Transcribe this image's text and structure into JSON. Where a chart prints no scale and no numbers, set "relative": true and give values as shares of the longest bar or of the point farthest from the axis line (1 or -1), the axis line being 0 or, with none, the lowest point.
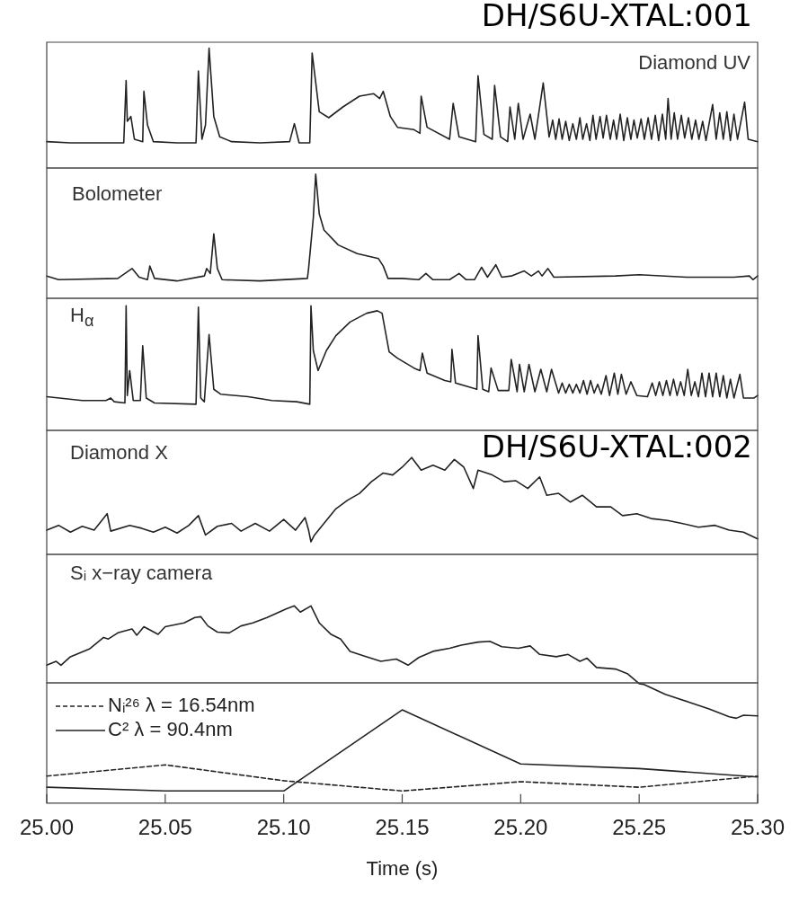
{
  "chart_data": [
    {
      "type": "line",
      "title": "Diamond UV",
      "relative": true,
      "xlim": [
        25.0,
        25.3
      ],
      "tick_labels": false,
      "grid": false,
      "color": "#222222",
      "annotations": [
        "DH/S6U-XTAL:001"
      ],
      "x": [
        25.0,
        25.01,
        25.02,
        25.03,
        25.0325,
        25.0335,
        25.034,
        25.0355,
        25.037,
        25.0405,
        25.041,
        25.0425,
        25.045,
        25.055,
        25.063,
        25.064,
        25.0655,
        25.067,
        25.0685,
        25.0705,
        25.073,
        25.078,
        25.09,
        25.1025,
        25.1045,
        25.1065,
        25.111,
        25.112,
        25.115,
        25.119,
        25.125,
        25.132,
        25.138,
        25.1405,
        25.142,
        25.145,
        25.148,
        25.155,
        25.1575,
        25.158,
        25.1605,
        25.17,
        25.1715,
        25.174,
        25.181,
        25.182,
        25.1845,
        25.188,
        25.189,
        25.1915,
        25.1945,
        25.1955,
        25.1975,
        25.199,
        25.201,
        25.204,
        25.206,
        25.2095,
        25.212,
        25.2135,
        25.2148,
        25.2162,
        25.2175,
        25.219,
        25.2205,
        25.222,
        25.2235,
        25.225,
        25.2262,
        25.2278,
        25.2292,
        25.2305,
        25.2318,
        25.2335,
        25.2348,
        25.2362,
        25.2378,
        25.2392,
        25.2405,
        25.242,
        25.2435,
        25.245,
        25.2465,
        25.2478,
        25.2492,
        25.2508,
        25.2522,
        25.2538,
        25.2552,
        25.2568,
        25.2582,
        25.2598,
        25.2612,
        25.2622,
        25.2635,
        25.2648,
        25.2662,
        25.2678,
        25.2692,
        25.2708,
        25.2722,
        25.2738,
        25.2752,
        25.2768,
        25.2782,
        25.281,
        25.2825,
        25.284,
        25.2855,
        25.287,
        25.2885,
        25.29,
        25.2915,
        25.2945,
        25.296,
        25.3
      ],
      "values": [
        0.22,
        0.21,
        0.21,
        0.21,
        0.21,
        0.73,
        0.39,
        0.43,
        0.24,
        0.22,
        0.64,
        0.36,
        0.22,
        0.21,
        0.21,
        0.81,
        0.24,
        0.36,
        1.0,
        0.43,
        0.26,
        0.22,
        0.21,
        0.22,
        0.37,
        0.21,
        0.21,
        0.96,
        0.47,
        0.42,
        0.51,
        0.6,
        0.62,
        0.58,
        0.64,
        0.43,
        0.34,
        0.32,
        0.29,
        0.6,
        0.34,
        0.24,
        0.54,
        0.26,
        0.22,
        0.77,
        0.28,
        0.24,
        0.69,
        0.26,
        0.22,
        0.51,
        0.24,
        0.54,
        0.24,
        0.45,
        0.24,
        0.71,
        0.26,
        0.4,
        0.24,
        0.41,
        0.24,
        0.39,
        0.23,
        0.37,
        0.24,
        0.42,
        0.24,
        0.37,
        0.23,
        0.44,
        0.24,
        0.43,
        0.25,
        0.44,
        0.24,
        0.4,
        0.24,
        0.45,
        0.23,
        0.42,
        0.24,
        0.4,
        0.25,
        0.41,
        0.24,
        0.42,
        0.24,
        0.44,
        0.23,
        0.45,
        0.24,
        0.58,
        0.24,
        0.46,
        0.24,
        0.44,
        0.25,
        0.42,
        0.24,
        0.4,
        0.24,
        0.39,
        0.23,
        0.53,
        0.24,
        0.46,
        0.24,
        0.47,
        0.23,
        0.45,
        0.24,
        0.55,
        0.24,
        0.22
      ]
    },
    {
      "type": "line",
      "title": "Bolometer",
      "relative": true,
      "xlim": [
        25.0,
        25.3
      ],
      "tick_labels": false,
      "grid": false,
      "color": "#222222",
      "x": [
        25.0,
        25.005,
        25.03,
        25.036,
        25.039,
        25.0425,
        25.0435,
        25.0455,
        25.055,
        25.0665,
        25.0675,
        25.069,
        25.0705,
        25.072,
        25.074,
        25.09,
        25.11,
        25.1105,
        25.1125,
        25.1135,
        25.115,
        25.117,
        25.123,
        25.131,
        25.14,
        25.142,
        25.144,
        25.15,
        25.157,
        25.16,
        25.163,
        25.17,
        25.174,
        25.177,
        25.1805,
        25.1835,
        25.186,
        25.1895,
        25.192,
        25.196,
        25.2015,
        25.2045,
        25.2075,
        25.209,
        25.2115,
        25.214,
        25.24,
        25.25,
        25.27,
        25.29,
        25.2965,
        25.298,
        25.3
      ],
      "values": [
        0.18,
        0.15,
        0.16,
        0.24,
        0.17,
        0.15,
        0.26,
        0.16,
        0.14,
        0.18,
        0.24,
        0.2,
        0.52,
        0.24,
        0.15,
        0.14,
        0.16,
        0.24,
        0.65,
        1.0,
        0.68,
        0.55,
        0.43,
        0.36,
        0.32,
        0.26,
        0.16,
        0.16,
        0.15,
        0.2,
        0.15,
        0.15,
        0.2,
        0.15,
        0.15,
        0.25,
        0.17,
        0.27,
        0.17,
        0.18,
        0.22,
        0.18,
        0.22,
        0.18,
        0.24,
        0.17,
        0.18,
        0.19,
        0.17,
        0.17,
        0.18,
        0.15,
        0.18
      ]
    },
    {
      "type": "line",
      "title": "H$_{α}$",
      "relative": true,
      "xlim": [
        25.0,
        25.3
      ],
      "tick_labels": false,
      "grid": false,
      "color": "#222222",
      "x": [
        25.0,
        25.015,
        25.025,
        25.027,
        25.0285,
        25.033,
        25.0335,
        25.034,
        25.035,
        25.0365,
        25.0395,
        25.0405,
        25.042,
        25.0455,
        25.063,
        25.064,
        25.065,
        25.0665,
        25.0685,
        25.0705,
        25.0735,
        25.085,
        25.095,
        25.1055,
        25.111,
        25.1115,
        25.1125,
        25.1145,
        25.118,
        25.122,
        25.128,
        25.135,
        25.1395,
        25.1415,
        25.1445,
        25.148,
        25.155,
        25.1575,
        25.1585,
        25.1605,
        25.168,
        25.1705,
        25.171,
        25.1725,
        25.178,
        25.1815,
        25.182,
        25.184,
        25.1865,
        25.1875,
        25.1905,
        25.195,
        25.196,
        25.1985,
        25.1995,
        25.2015,
        25.2035,
        25.206,
        25.2085,
        25.211,
        25.213,
        25.216,
        25.2175,
        25.219,
        25.2205,
        25.222,
        25.2235,
        25.225,
        25.2265,
        25.228,
        25.2295,
        25.231,
        25.2325,
        25.234,
        25.236,
        25.2375,
        25.2395,
        25.241,
        25.2425,
        25.2445,
        25.2465,
        25.249,
        25.2535,
        25.2555,
        25.257,
        25.2585,
        25.26,
        25.2615,
        25.263,
        25.2645,
        25.266,
        25.2675,
        25.269,
        25.2705,
        25.272,
        25.2735,
        25.275,
        25.2765,
        25.278,
        25.2795,
        25.281,
        25.2825,
        25.284,
        25.2855,
        25.287,
        25.2885,
        25.29,
        25.2925,
        25.294,
        25.2985,
        25.3
      ],
      "values": [
        0.27,
        0.24,
        0.24,
        0.26,
        0.23,
        0.22,
        1.0,
        0.28,
        0.48,
        0.24,
        0.24,
        0.68,
        0.26,
        0.22,
        0.21,
        0.99,
        0.26,
        0.23,
        0.77,
        0.33,
        0.29,
        0.27,
        0.24,
        0.23,
        0.21,
        1.0,
        0.64,
        0.48,
        0.64,
        0.76,
        0.87,
        0.94,
        0.96,
        0.94,
        0.63,
        0.58,
        0.5,
        0.48,
        0.62,
        0.46,
        0.4,
        0.39,
        0.65,
        0.38,
        0.35,
        0.33,
        0.76,
        0.33,
        0.31,
        0.5,
        0.32,
        0.32,
        0.57,
        0.31,
        0.53,
        0.31,
        0.53,
        0.31,
        0.49,
        0.31,
        0.49,
        0.3,
        0.38,
        0.3,
        0.37,
        0.3,
        0.37,
        0.3,
        0.4,
        0.29,
        0.4,
        0.3,
        0.37,
        0.29,
        0.44,
        0.28,
        0.46,
        0.29,
        0.45,
        0.29,
        0.39,
        0.28,
        0.27,
        0.38,
        0.28,
        0.39,
        0.28,
        0.4,
        0.28,
        0.41,
        0.28,
        0.39,
        0.28,
        0.49,
        0.28,
        0.39,
        0.27,
        0.46,
        0.27,
        0.46,
        0.27,
        0.46,
        0.27,
        0.44,
        0.26,
        0.41,
        0.26,
        0.45,
        0.26,
        0.26,
        0.28
      ]
    },
    {
      "type": "line",
      "title": "Diamond X",
      "relative": true,
      "xlim": [
        25.0,
        25.3
      ],
      "tick_labels": false,
      "grid": false,
      "color": "#222222",
      "annotations": [
        "DH/S6U-XTAL:002"
      ],
      "x": [
        25.0,
        25.005,
        25.01,
        25.015,
        25.02,
        25.0255,
        25.027,
        25.035,
        25.04,
        25.045,
        25.05,
        25.055,
        25.06,
        25.064,
        25.067,
        25.072,
        25.078,
        25.082,
        25.088,
        25.094,
        25.1,
        25.105,
        25.109,
        25.1105,
        25.1115,
        25.113,
        25.117,
        25.122,
        25.127,
        25.132,
        25.137,
        25.142,
        25.146,
        25.15,
        25.154,
        25.158,
        25.163,
        25.168,
        25.172,
        25.176,
        25.18,
        25.182,
        25.188,
        25.193,
        25.198,
        25.203,
        25.208,
        25.211,
        25.216,
        25.221,
        25.226,
        25.232,
        25.238,
        25.243,
        25.249,
        25.255,
        25.262,
        25.268,
        25.275,
        25.282,
        25.288,
        25.294,
        25.3
      ],
      "values": [
        0.25,
        0.3,
        0.23,
        0.29,
        0.25,
        0.42,
        0.24,
        0.3,
        0.27,
        0.23,
        0.28,
        0.22,
        0.3,
        0.4,
        0.2,
        0.29,
        0.32,
        0.24,
        0.32,
        0.24,
        0.36,
        0.25,
        0.38,
        0.25,
        0.13,
        0.2,
        0.32,
        0.47,
        0.56,
        0.63,
        0.75,
        0.84,
        0.82,
        0.9,
        1.0,
        0.87,
        0.92,
        0.87,
        0.98,
        0.9,
        0.68,
        0.87,
        0.82,
        0.75,
        0.76,
        0.68,
        0.8,
        0.61,
        0.63,
        0.54,
        0.61,
        0.49,
        0.49,
        0.4,
        0.42,
        0.37,
        0.35,
        0.32,
        0.28,
        0.3,
        0.25,
        0.23,
        0.16
      ]
    },
    {
      "type": "line",
      "title": "Sᵢ x−ray camera",
      "relative": true,
      "xlim": [
        25.0,
        25.3
      ],
      "tick_labels": false,
      "grid": false,
      "color": "#222222",
      "x": [
        25.0,
        25.004,
        25.006,
        25.01,
        25.018,
        25.024,
        25.026,
        25.03,
        25.036,
        25.038,
        25.041,
        25.047,
        25.05,
        25.058,
        25.0625,
        25.065,
        25.068,
        25.072,
        25.077,
        25.082,
        25.087,
        25.093,
        25.101,
        25.1045,
        25.107,
        25.1115,
        25.115,
        25.12,
        25.124,
        25.128,
        25.135,
        25.141,
        25.1475,
        25.1525,
        25.157,
        25.163,
        25.17,
        25.175,
        25.182,
        25.187,
        25.192,
        25.199,
        25.204,
        25.208,
        25.215,
        25.22,
        25.225,
        25.228,
        25.232,
        25.24,
        25.245,
        25.25,
        25.252,
        25.261,
        25.271,
        25.2795,
        25.288,
        25.291,
        25.294,
        25.3
      ],
      "values": [
        0.23,
        0.28,
        0.23,
        0.34,
        0.44,
        0.59,
        0.57,
        0.65,
        0.7,
        0.62,
        0.73,
        0.63,
        0.73,
        0.78,
        0.85,
        0.86,
        0.74,
        0.66,
        0.65,
        0.74,
        0.78,
        0.85,
        0.96,
        1.0,
        0.92,
        1.0,
        0.78,
        0.63,
        0.57,
        0.41,
        0.34,
        0.28,
        0.31,
        0.23,
        0.33,
        0.41,
        0.45,
        0.49,
        0.53,
        0.54,
        0.47,
        0.45,
        0.48,
        0.37,
        0.34,
        0.37,
        0.28,
        0.32,
        0.2,
        0.18,
        0.12,
        -0.01,
        -0.02,
        -0.15,
        -0.25,
        -0.34,
        -0.44,
        -0.46,
        -0.42,
        -0.43
      ]
    },
    {
      "type": "line",
      "relative": true,
      "xlim": [
        25.0,
        25.3
      ],
      "xticks": [
        {
          "value": 25.0,
          "label": "25.00"
        },
        {
          "value": 25.05,
          "label": "25.05"
        },
        {
          "value": 25.1,
          "label": "25.10"
        },
        {
          "value": 25.15,
          "label": "25.15"
        },
        {
          "value": 25.2,
          "label": "25.20"
        },
        {
          "value": 25.25,
          "label": "25.25"
        },
        {
          "value": 25.3,
          "label": "25.30"
        }
      ],
      "xlabel": "Time (s)",
      "tick_labels": "x",
      "grid": false,
      "legend": "top left",
      "x": [
        25.0,
        25.05,
        25.1,
        25.15,
        25.2,
        25.25,
        25.3
      ],
      "series": [
        {
          "name": "Nᵢ²⁶ λ = 16.54nm",
          "color": "#222222",
          "line_style": "dashed",
          "values": [
            0.29,
            0.41,
            0.24,
            0.13,
            0.23,
            0.17,
            0.29
          ]
        },
        {
          "name": "C² λ = 90.4nm",
          "color": "#222222",
          "line_style": "solid",
          "values": [
            0.17,
            0.13,
            0.13,
            1.0,
            0.42,
            0.37,
            0.28
          ]
        }
      ]
    }
  ]
}
